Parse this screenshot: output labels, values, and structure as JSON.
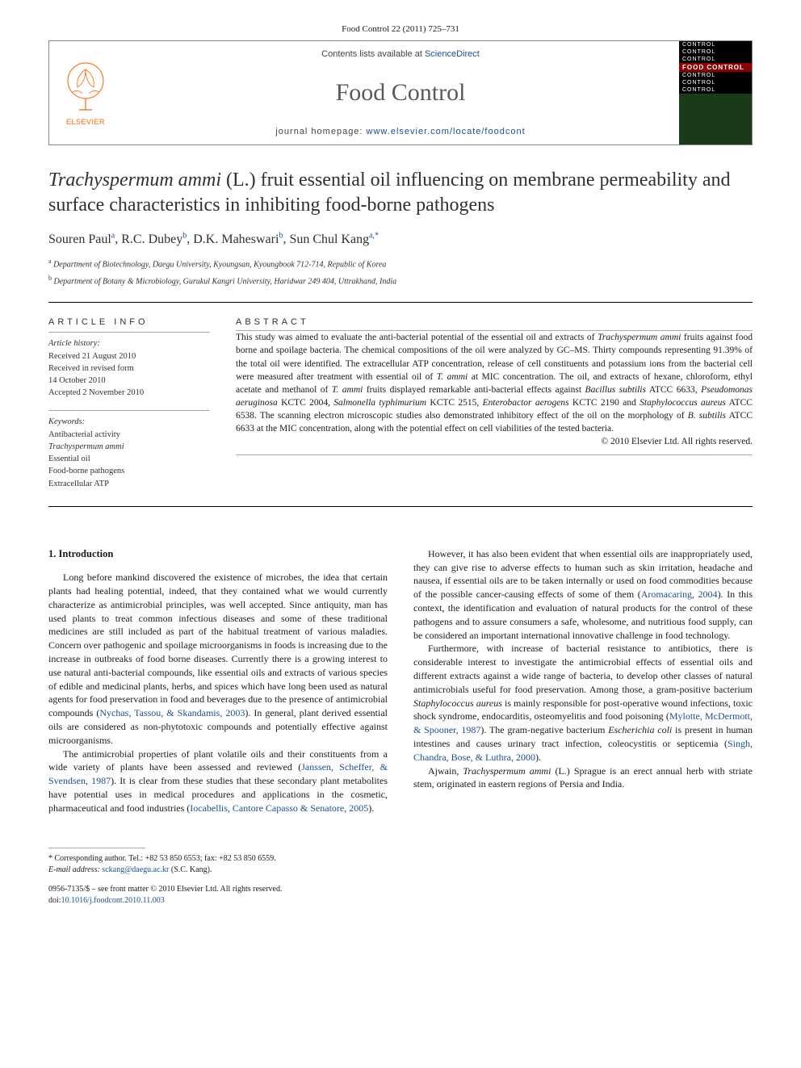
{
  "citation": "Food Control 22 (2011) 725–731",
  "masthead": {
    "contents_prefix": "Contents lists available at ",
    "contents_link": "ScienceDirect",
    "journal_name": "Food Control",
    "homepage_prefix": "journal homepage: ",
    "homepage_link": "www.elsevier.com/locate/foodcont",
    "elsevier_label": "ELSEVIER",
    "cover_lines": [
      "CONTROL",
      "CONTROL",
      "CONTROL",
      "FOOD CONTROL",
      "CONTROL",
      "CONTROL",
      "CONTROL"
    ]
  },
  "title": {
    "italic_part": "Trachyspermum ammi",
    "rest": " (L.) fruit essential oil influencing on membrane permeability and surface characteristics in inhibiting food-borne pathogens"
  },
  "authors": [
    {
      "name": "Souren Paul",
      "sup": "a"
    },
    {
      "name": "R.C. Dubey",
      "sup": "b"
    },
    {
      "name": "D.K. Maheswari",
      "sup": "b"
    },
    {
      "name": "Sun Chul Kang",
      "sup": "a,",
      "corr": "*"
    }
  ],
  "affiliations": [
    {
      "sup": "a",
      "text": "Department of Biotechnology, Daegu University, Kyoungsan, Kyoungbook 712-714, Republic of Korea"
    },
    {
      "sup": "b",
      "text": "Department of Botany & Microbiology, Gurukul Kangri University, Haridwar 249 404, Uttrakhand, India"
    }
  ],
  "info": {
    "label": "ARTICLE INFO",
    "history_lbl": "Article history:",
    "history": [
      "Received 21 August 2010",
      "Received in revised form",
      "14 October 2010",
      "Accepted 2 November 2010"
    ],
    "keywords_lbl": "Keywords:",
    "keywords": [
      "Antibacterial activity",
      "Trachyspermum ammi",
      "Essential oil",
      "Food-borne pathogens",
      "Extracellular ATP"
    ]
  },
  "abstract": {
    "label": "ABSTRACT",
    "text_parts": [
      {
        "t": "This study was aimed to evaluate the anti-bacterial potential of the essential oil and extracts of "
      },
      {
        "t": "Trachyspermum ammi",
        "i": true
      },
      {
        "t": " fruits against food borne and spoilage bacteria. The chemical compositions of the oil were analyzed by GC–MS. Thirty compounds representing 91.39% of the total oil were identified. The extracellular ATP concentration, release of cell constituents and potassium ions from the bacterial cell were measured after treatment with essential oil of "
      },
      {
        "t": "T. ammi",
        "i": true
      },
      {
        "t": " at MIC concentration. The oil, and extracts of hexane, chloroform, ethyl acetate and methanol of "
      },
      {
        "t": "T. ammi",
        "i": true
      },
      {
        "t": " fruits displayed remarkable anti-bacterial effects against "
      },
      {
        "t": "Bacillus subtilis",
        "i": true
      },
      {
        "t": " ATCC 6633, "
      },
      {
        "t": "Pseudomonas aeruginosa",
        "i": true
      },
      {
        "t": " KCTC 2004, "
      },
      {
        "t": "Salmonella typhimurium",
        "i": true
      },
      {
        "t": " KCTC 2515, "
      },
      {
        "t": "Enterobactor aerogens",
        "i": true
      },
      {
        "t": " KCTC 2190 and "
      },
      {
        "t": "Staphylococcus aureus",
        "i": true
      },
      {
        "t": " ATCC 6538. The scanning electron microscopic studies also demonstrated inhibitory effect of the oil on the morphology of "
      },
      {
        "t": "B. subtilis",
        "i": true
      },
      {
        "t": " ATCC 6633 at the MIC concentration, along with the potential effect on cell viabilities of the tested bacteria."
      }
    ],
    "copyright": "© 2010 Elsevier Ltd. All rights reserved."
  },
  "body": {
    "heading": "1.  Introduction",
    "p1": "Long before mankind discovered the existence of microbes, the idea that certain plants had healing potential, indeed, that they contained what we would currently characterize as antimicrobial principles, was well accepted. Since antiquity, man has used plants to treat common infectious diseases and some of these traditional medicines are still included as part of the habitual treatment of various maladies. Concern over pathogenic and spoilage microorganisms in foods is increasing due to the increase in outbreaks of food borne diseases. Currently there is a growing interest to use natural anti-bacterial compounds, like essential oils and extracts of various species of edible and medicinal plants, herbs, and spices which have long been used as natural agents for food preservation in food and beverages due to the presence of antimicrobial compounds (",
    "p1_ref": "Nychas, Tassou, & Skandamis, 2003",
    "p1_tail": "). In general, plant derived essential oils are considered as non-phytotoxic compounds and potentially effective against microorganisms.",
    "p2": "The antimicrobial properties of plant volatile oils and their constituents from a wide variety of plants have been assessed and reviewed (",
    "p2_ref": "Janssen, Scheffer, & Svendsen, 1987",
    "p2_tail": "). It is clear from these studies that these secondary plant metabolites have potential uses in medical procedures and applications in the cosmetic, pharmaceutical and food industries (",
    "p2_ref2": "Iocabellis, Cantore Capasso & Senatore, 2005",
    "p2_tail2": ").",
    "p3": "However, it has also been evident that when essential oils are inappropriately used, they can give rise to adverse effects to human such as skin irritation, headache and nausea, if essential oils are to be taken internally or used on food commodities because of the possible cancer-causing effects of some of them (",
    "p3_ref": "Aromacaring, 2004",
    "p3_tail": "). In this context, the identification and evaluation of natural products for the control of these pathogens and to assure consumers a safe, wholesome, and nutritious food supply, can be considered an important international innovative challenge in food technology.",
    "p4": "Furthermore, with increase of bacterial resistance to antibiotics, there is considerable interest to investigate the antimicrobial effects of essential oils and different extracts against a wide range of bacteria, to develop other classes of natural antimicrobials useful for food preservation. Among those, a gram-positive bacterium ",
    "p4_i1": "Staphylococcus aureus",
    "p4_mid": " is mainly responsible for post-operative wound infections, toxic shock syndrome, endocarditis, osteomyelitis and food poisoning (",
    "p4_ref": "Mylotte, McDermott, & Spooner, 1987",
    "p4_mid2": "). The gram-negative bacterium ",
    "p4_i2": "Escherichia coli",
    "p4_mid3": " is present in human intestines and causes urinary tract infection, coleocystitis or septicemia (",
    "p4_ref2": "Singh, Chandra, Bose, & Luthra, 2000",
    "p4_tail": ").",
    "p5_pre": "Ajwain, ",
    "p5_i": "Trachyspermum ammi",
    "p5_tail": " (L.) Sprague is an erect annual herb with striate stem, originated in eastern regions of Persia and India."
  },
  "footer": {
    "corr": "* Corresponding author. Tel.: +82 53 850 6553; fax: +82 53 850 6559.",
    "email_lbl": "E-mail address: ",
    "email": "sckang@daegu.ac.kr",
    "email_tail": " (S.C. Kang).",
    "issn": "0956-7135/$ – see front matter © 2010 Elsevier Ltd. All rights reserved.",
    "doi_lbl": "doi:",
    "doi": "10.1016/j.foodcont.2010.11.003"
  },
  "colors": {
    "link": "#1a4f8f",
    "elsevier_orange": "#ff6600",
    "cover_red": "#8b0000",
    "cover_green": "#1a3a1a",
    "text": "#1a1a1a",
    "gray": "#5a5a5a"
  }
}
